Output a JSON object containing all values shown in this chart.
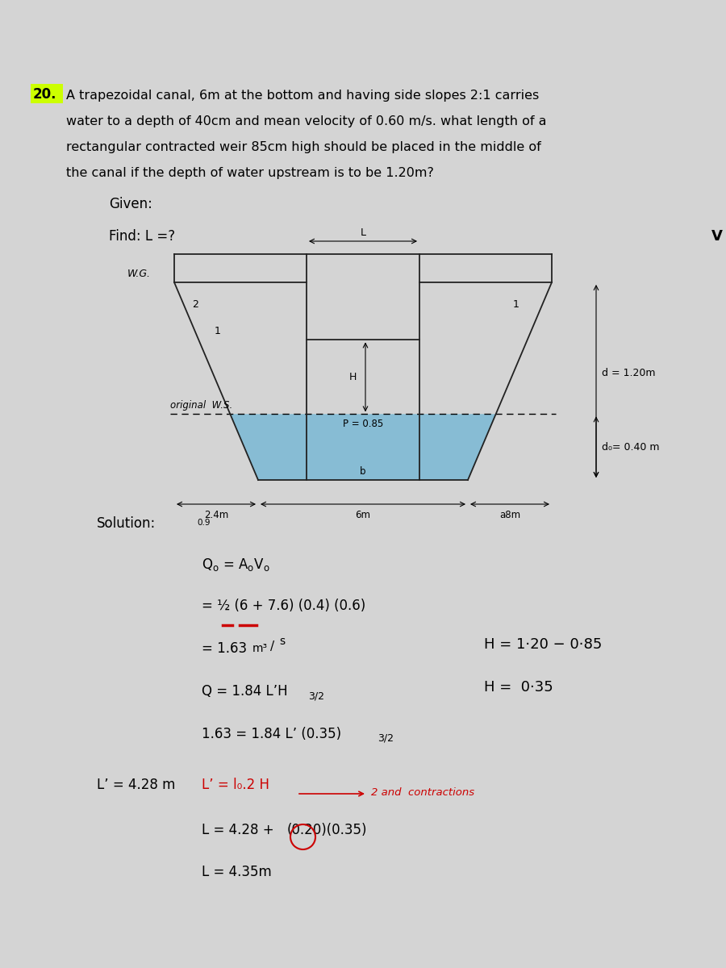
{
  "bg_color": "#d4d4d4",
  "title_highlight_color": "#ccff00",
  "title_number": "20.",
  "line1": "A trapezoidal canal, 6m at the bottom and having side slopes 2:1 carries",
  "line2": "water to a depth of 40cm and mean velocity of 0.60 m/s. what length of a",
  "line3": "rectangular contracted weir 85cm high should be placed in the middle of",
  "line4": "the canal if the depth of water upstream is to be 1.20m?",
  "given_text": "Given:",
  "find_text": "Find: L =?",
  "solution_text": "Solution:",
  "water_color": "#7ab8d4",
  "line_color": "#222222",
  "red_color": "#cc0000",
  "eq_Qo": "Q₀ = A₀V₀",
  "eq_half": "= ½ (6 + 7.6) (0.4) (0.6)",
  "eq_163": "= 1.63",
  "eq_Q184": "Q = 1.84 L’H",
  "eq_163_2": "1.63 = 1.84 L’ (0.35) ",
  "eq_Lprime": "L’ = 4.28 m",
  "eq_Lprime2": "L’ = l₀.2 H",
  "eq_arrow_text": "2 and  contractions",
  "eq_L428": "L = 4.28 + ",
  "eq_0200035": "(0.20)(0.35)",
  "eq_L435": "L = 4.35m",
  "side_h1": "H = 1·20 − 0·85",
  "side_h2": "H =  0·35"
}
